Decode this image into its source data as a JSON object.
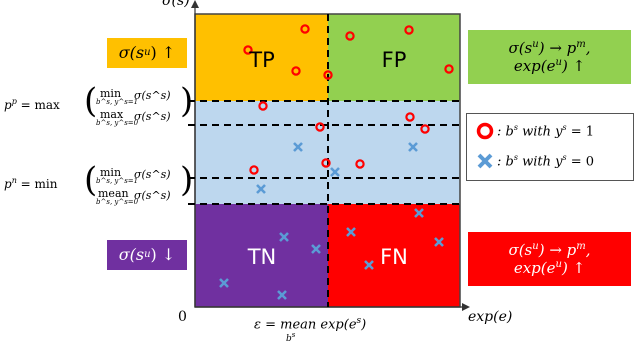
{
  "quadrants": {
    "tp": {
      "label": "TP",
      "color": "#ffc000"
    },
    "fp": {
      "label": "FP",
      "color": "#92d050"
    },
    "tn": {
      "label": "TN",
      "color": "#7030a0"
    },
    "fn": {
      "label": "FN",
      "color": "#ff0000"
    },
    "band_color": "#bdd7ee"
  },
  "axes": {
    "y_label": "σ(s)",
    "x_label": "exp(e)",
    "origin_label": "0",
    "x_threshold_label": "ε = mean exp(e",
    "x_threshold_sup": "s",
    "x_threshold_close": ")",
    "x_threshold_sub": "b",
    "x_threshold_subsup": "s"
  },
  "thresholds": {
    "pp": {
      "lhs": "p",
      "lhs_sup": "p",
      "eq": " = max",
      "top_op": "min",
      "top_sub": "b^s, y^s=1",
      "top_fn": "σ(s^s)",
      "bot_op": "max",
      "bot_sub": "b^s, y^s=0",
      "bot_fn": "σ(s^s)"
    },
    "pn": {
      "lhs": "p",
      "lhs_sup": "n",
      "eq": " = min",
      "top_op": "min",
      "top_sub": "b^s, y^s=1",
      "top_fn": "σ(s^s)",
      "bot_op": "mean",
      "bot_sub": "b^s, y^s=0",
      "bot_fn": "σ(s^s)"
    }
  },
  "annotations": {
    "tp_side": {
      "text": "σ(s",
      "sup": "u",
      "close": ") ↑",
      "color": "#ffc000"
    },
    "tn_side": {
      "text": "σ(s",
      "sup": "u",
      "close": ") ↓",
      "color": "#7030a0"
    },
    "fp_side": {
      "line1": "σ(s",
      "sup1": "u",
      "close1": ") → p",
      "sup1b": "m",
      "tail1": ",",
      "line2": "exp(e",
      "sup2": "u",
      "close2": ") ↑",
      "color": "#92d050"
    },
    "fn_side": {
      "line1": "σ(s",
      "sup1": "u",
      "close1": ") → p",
      "sup1b": "m",
      "tail1": ",",
      "line2": "exp(e",
      "sup2": "u",
      "close2": ") ↑",
      "color": "#ff0000"
    }
  },
  "legend": {
    "positive": {
      "pre": ": b",
      "sup": "s",
      "mid": " with y",
      "sup2": "s",
      "post": " = 1",
      "color": "#ff0000"
    },
    "negative": {
      "pre": ": b",
      "sup": "s",
      "mid": " with y",
      "sup2": "s",
      "post": " = 0",
      "color": "#5b9bd5"
    }
  },
  "markers": {
    "positive_color": "#ff0000",
    "negative_color": "#5b9bd5"
  }
}
